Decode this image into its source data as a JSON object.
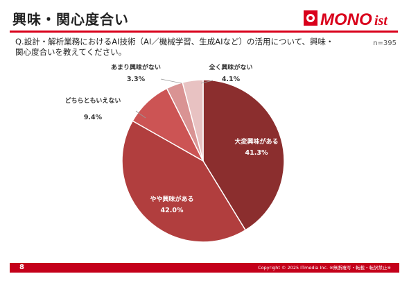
{
  "header": {
    "title": "興味・関心度合い",
    "logo_main": "MONO",
    "logo_suffix": "ist",
    "question": "Q.設計・解析業務におけるAI技術（AI／機械学習、生成AIなど）の活用について、興味・関心度合いを教えてください。",
    "sample_size": "n=395"
  },
  "chart_data": {
    "type": "pie",
    "start_angle": "12 o'clock, clockwise",
    "slices": [
      {
        "label": "大変興味がある",
        "value": 41.3,
        "value_label": "41.3%",
        "color": "#8b2e2e"
      },
      {
        "label": "やや興味がある",
        "value": 42.0,
        "value_label": "42.0%",
        "color": "#b13e3e"
      },
      {
        "label": "どちらともいえない",
        "value": 9.4,
        "value_label": "9.4%",
        "color": "#cc5454"
      },
      {
        "label": "あまり興味がない",
        "value": 3.3,
        "value_label": "3.3%",
        "color": "#d99393"
      },
      {
        "label": "全く興味がない",
        "value": 4.1,
        "value_label": "4.1%",
        "color": "#e8c2c2"
      }
    ]
  },
  "footer": {
    "page_number": "8",
    "copyright": "Copyright © 2025 ITmedia Inc.  ※無断複写・転載・転訳禁止※"
  },
  "colors": {
    "accent": "#d9001b",
    "footer_bg": "#c4001a"
  }
}
